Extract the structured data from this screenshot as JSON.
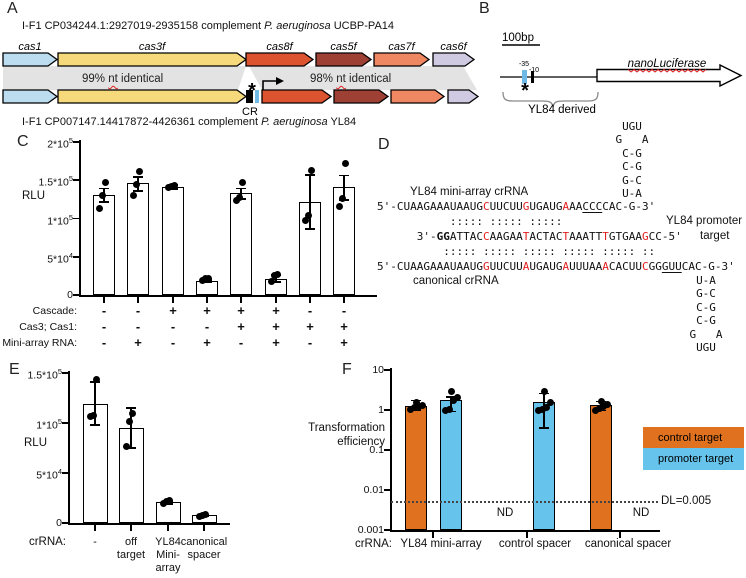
{
  "panel_letters": {
    "A": "A",
    "B": "B",
    "C": "C",
    "D": "D",
    "E": "E",
    "F": "F"
  },
  "panelA": {
    "line_top_prefix": "I-F1 CP034244.1:2927019-2935158 complement ",
    "line_top_species": "P. aeruginosa",
    "line_top_suffix": " UCBP-PA14",
    "line_bottom_prefix": "I-F1 CP007147.14417872-4426361 complement ",
    "line_bottom_species": "P. aeruginosa",
    "line_bottom_suffix": " YL84",
    "genes": [
      {
        "name": "cas1",
        "color": "#BCDCEF"
      },
      {
        "name": "cas3f",
        "color": "#F6D97A"
      },
      {
        "name": "cas8f",
        "color": "#DC5330"
      },
      {
        "name": "cas5f",
        "color": "#9E4033"
      },
      {
        "name": "cas7f",
        "color": "#F08763"
      },
      {
        "name": "cas6f",
        "color": "#CFC9E2"
      }
    ],
    "identity_left": {
      "prefix": "99% ",
      "word": "nt",
      "suffix": " identical"
    },
    "identity_right": {
      "prefix": "98% ",
      "word": "nt",
      "suffix": " identical"
    },
    "cr_label": "CR",
    "asterisk": "*",
    "ribbon_color": "#E3E3E3",
    "promoter_tick_color": "#6FB9E6"
  },
  "panelB": {
    "scale_label": "100bp",
    "minus35": "-35",
    "minus10": "-10",
    "asterisk": "*",
    "gene_label": "nanoLuciferase",
    "brace_label": "YL84 derived"
  },
  "panelD": {
    "label_mini": "YL84 mini-array crRNA",
    "label_canonical": "canonical crRNA",
    "target_label_line1": "YL84 promoter",
    "target_label_line2": "target",
    "row_mini": [
      [
        "5'-CUAAGAAAUAAUG",
        ""
      ],
      [
        "C",
        "red"
      ],
      [
        "UUCUU",
        ""
      ],
      [
        "G",
        "red"
      ],
      [
        "UGAUG",
        ""
      ],
      [
        "A",
        "red"
      ],
      [
        "AA",
        ""
      ],
      [
        "CCC",
        "ul"
      ],
      [
        "CAC-G-3'",
        ""
      ]
    ],
    "row_pair_top": "           ::::: ::::: :::::",
    "row_target": [
      [
        "      3'-",
        ""
      ],
      [
        "GG",
        "bold"
      ],
      [
        "ATTAC",
        ""
      ],
      [
        "C",
        "red"
      ],
      [
        "AAGAA",
        ""
      ],
      [
        "T",
        "red"
      ],
      [
        "ACTAC",
        ""
      ],
      [
        "T",
        "red"
      ],
      [
        "AAATT",
        ""
      ],
      [
        "T",
        "red"
      ],
      [
        "GTGAA",
        ""
      ],
      [
        "G",
        "red"
      ],
      [
        "CC-5'",
        ""
      ]
    ],
    "row_pair_bottom": "          ::::: ::::: ::::: ::::: ::::: ::",
    "row_canonical": [
      [
        "5'-CUAAGAAAUAAUG",
        ""
      ],
      [
        "G",
        "red"
      ],
      [
        "UUCUU",
        ""
      ],
      [
        "A",
        "red"
      ],
      [
        "UGAUG",
        ""
      ],
      [
        "A",
        "red"
      ],
      [
        "UUUAA",
        ""
      ],
      [
        "A",
        "red"
      ],
      [
        "CACUU",
        ""
      ],
      [
        "C",
        "red"
      ],
      [
        "GG",
        ""
      ],
      [
        "GUU",
        "ul"
      ],
      [
        "CAC-G-3'",
        ""
      ]
    ],
    "stem_top": [
      "UGU",
      "G   A",
      "C-G",
      "C-G",
      "G-C",
      "U-A"
    ],
    "stem_bottom": [
      "U-A",
      "G-C",
      "C-G",
      "C-G",
      "G   A",
      "UGU"
    ],
    "red_color": "#E21D1D"
  },
  "chart_data": [
    {
      "id": "C",
      "type": "bar",
      "ylabel": "RLU",
      "ylim": [
        0,
        200000
      ],
      "yticks": [
        [
          0,
          "0"
        ],
        [
          50000,
          "5*10^4"
        ],
        [
          100000,
          "1*10^5"
        ],
        [
          150000,
          "1.5*10^5"
        ],
        [
          200000,
          "2*10^5"
        ]
      ],
      "bars": [
        {
          "value": 131000,
          "err": [
            121000,
            140000
          ],
          "dots": [
            113000,
            130000,
            147000
          ]
        },
        {
          "value": 146000,
          "err": [
            136000,
            155000
          ],
          "dots": [
            130000,
            145000,
            161000
          ]
        },
        {
          "value": 141000,
          "err": [
            138000,
            145000
          ],
          "dots": [
            140000,
            142000,
            143000
          ]
        },
        {
          "value": 18000,
          "err": [
            16000,
            21000
          ],
          "dots": [
            19000,
            21000,
            21000
          ]
        },
        {
          "value": 133000,
          "err": [
            125000,
            140000
          ],
          "dots": [
            124000,
            127000,
            147000
          ]
        },
        {
          "value": 21000,
          "err": [
            17000,
            27000
          ],
          "dots": [
            17000,
            26000,
            27000
          ]
        },
        {
          "value": 122000,
          "err": [
            86000,
            158000
          ],
          "dots": [
            97000,
            104000,
            163000
          ]
        },
        {
          "value": 141000,
          "err": [
            124000,
            157000
          ],
          "dots": [
            116000,
            126000,
            172000
          ]
        }
      ],
      "condition_rows": [
        {
          "label": "Cascade:",
          "values": [
            "-",
            "-",
            "+",
            "+",
            "+",
            "+",
            "-",
            "-"
          ]
        },
        {
          "label": "Cas3; Cas1:",
          "values": [
            "-",
            "-",
            "-",
            "-",
            "+",
            "+",
            "+",
            "+"
          ]
        },
        {
          "label": "Mini-array RNA:",
          "values": [
            "-",
            "+",
            "-",
            "+",
            "-",
            "+",
            "-",
            "+"
          ]
        }
      ]
    },
    {
      "id": "E",
      "type": "bar",
      "ylabel": "RLU",
      "ylim": [
        0,
        150000
      ],
      "yticks": [
        [
          0,
          "0"
        ],
        [
          50000,
          "5*10^4"
        ],
        [
          100000,
          "1*10^5"
        ],
        [
          150000,
          "1.5*10^5"
        ]
      ],
      "x_axis_label": "crRNA:",
      "categories": [
        [
          "-"
        ],
        [
          "off",
          "target"
        ],
        [
          "YL84",
          "Mini-",
          "array"
        ],
        [
          "canonical",
          "spacer"
        ]
      ],
      "bars": [
        {
          "value": 119000,
          "err": [
            98000,
            142000
          ],
          "dots": [
            107000,
            108000,
            144000
          ]
        },
        {
          "value": 95000,
          "err": [
            75000,
            116000
          ],
          "dots": [
            77000,
            102000,
            110000
          ]
        },
        {
          "value": 21000,
          "err": [
            19000,
            23000
          ],
          "dots": [
            20000,
            22000,
            23000
          ]
        },
        {
          "value": 8000,
          "err": [
            7000,
            9000
          ],
          "dots": [
            7000,
            8000,
            9000
          ]
        }
      ]
    },
    {
      "id": "F",
      "type": "bar-log",
      "ylabel_lines": [
        "Transformation",
        "efficiency"
      ],
      "ylim": [
        0.001,
        10
      ],
      "yticks": [
        [
          0.001,
          "0.001"
        ],
        [
          0.01,
          "0.01"
        ],
        [
          0.1,
          "0.1"
        ],
        [
          1,
          "1"
        ],
        [
          10,
          "10"
        ]
      ],
      "x_axis_label": "crRNA:",
      "categories": [
        "YL84 mini-array",
        "control spacer",
        "canonical spacer"
      ],
      "series": [
        {
          "name": "control target",
          "color": "#E0711F"
        },
        {
          "name": "promoter target",
          "color": "#66C3EB"
        }
      ],
      "nd_label": "ND",
      "dl_line": {
        "value": 0.005,
        "label": "DL=0.005"
      },
      "groups": [
        {
          "bars": [
            {
              "series": 0,
              "value": 1.25,
              "err": [
                1.0,
                1.8
              ],
              "dots": [
                1.05,
                1.15,
                1.25,
                1.3,
                1.5
              ]
            },
            {
              "series": 1,
              "value": 1.75,
              "err": [
                0.9,
                2.2
              ],
              "dots": [
                0.95,
                1.05,
                1.7,
                2.0,
                2.9
              ]
            }
          ]
        },
        {
          "bars": [
            {
              "series": 0,
              "nd": true
            },
            {
              "series": 1,
              "value": 1.55,
              "err": [
                0.35,
                2.7
              ],
              "dots": [
                0.95,
                1.05,
                1.15,
                1.55,
                2.9
              ]
            }
          ]
        },
        {
          "bars": [
            {
              "series": 0,
              "value": 1.35,
              "err": [
                0.95,
                1.7
              ],
              "dots": [
                1.0,
                1.1,
                1.25,
                1.35,
                1.6
              ]
            },
            {
              "series": 1,
              "nd": true
            }
          ]
        }
      ]
    }
  ]
}
